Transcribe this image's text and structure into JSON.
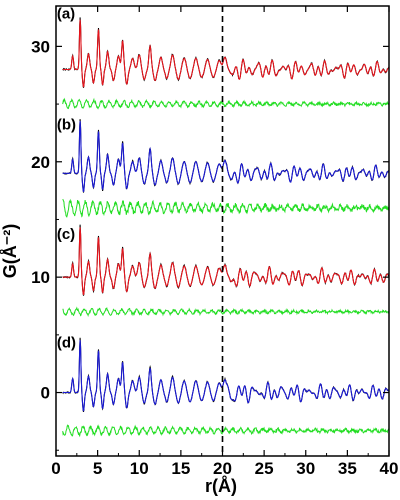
{
  "chart_data": {
    "type": "line",
    "xlabel": "r(Å)",
    "ylabel": "G(Å⁻²)",
    "xlim": [
      0,
      40
    ],
    "ylim": [
      -5.5,
      33.5
    ],
    "x_ticks": [
      0,
      5,
      10,
      15,
      20,
      25,
      30,
      35,
      40
    ],
    "y_ticks": [
      0,
      10,
      20,
      30
    ],
    "reference_line": {
      "x": 20,
      "style": "dashed"
    },
    "colors": {
      "observed": "#000000",
      "fit_red": "#e8141c",
      "fit_blue": "#1a1ad6",
      "difference": "#22dd22"
    },
    "panels": [
      {
        "label": "(a)",
        "label_y": 32.4,
        "offset": 28,
        "diff_offset": 25,
        "fit_color": "#e8141c",
        "peak_scale": 1.0,
        "diff_scale": 0.35,
        "seed": 1
      },
      {
        "label": "(b)",
        "label_y": 22.8,
        "offset": 19,
        "diff_offset": 16,
        "fit_color": "#1a1ad6",
        "peak_scale": 1.05,
        "diff_scale": 0.65,
        "seed": 2
      },
      {
        "label": "(c)",
        "label_y": 13.3,
        "offset": 10,
        "diff_offset": 7,
        "fit_color": "#e8141c",
        "peak_scale": 1.0,
        "diff_scale": 0.3,
        "seed": 3
      },
      {
        "label": "(d)",
        "label_y": 3.9,
        "offset": 0,
        "diff_offset": -3.3,
        "fit_color": "#1a1ad6",
        "peak_scale": 1.05,
        "diff_scale": 0.4,
        "seed": 4
      }
    ]
  }
}
